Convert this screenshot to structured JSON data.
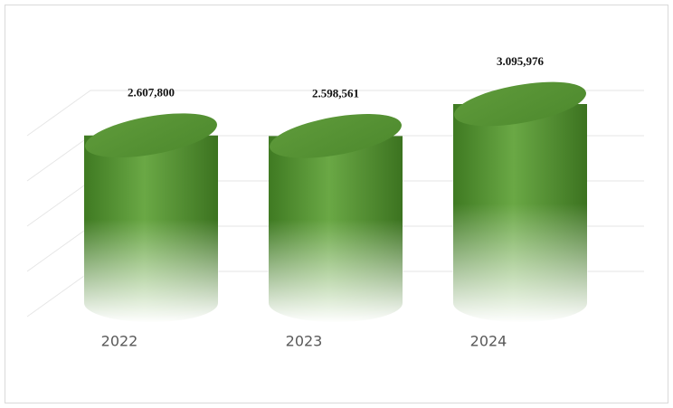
{
  "chart_data": {
    "type": "cylinder",
    "categories": [
      "2022",
      "2023",
      "2024"
    ],
    "values": [
      2607800,
      2598561,
      3095976
    ],
    "value_labels": [
      "2.607,800",
      "2.598,561",
      "3.095,976"
    ],
    "color": "#5e9a3a",
    "grid": true
  }
}
